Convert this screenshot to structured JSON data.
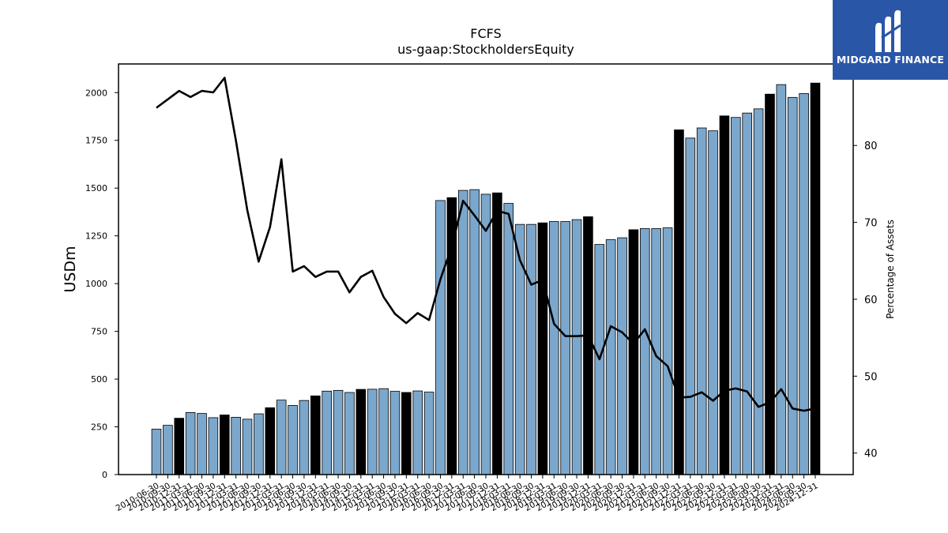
{
  "chart_data": {
    "type": "bar",
    "title": "FCFS",
    "subtitle": "us-gaap:StockholdersEquity",
    "ylabel": "USDm",
    "y2label": "Percentage of Assets",
    "ylim": [
      0,
      2150
    ],
    "y2lim": [
      37.2,
      90.6
    ],
    "yticks": [
      0,
      250,
      500,
      750,
      1000,
      1250,
      1500,
      1750,
      2000
    ],
    "y2ticks": [
      40,
      50,
      60,
      70,
      80
    ],
    "colors": {
      "bar": "#7ba7cc",
      "bar_highlight": "#000000",
      "line": "#000000"
    },
    "categories": [
      "2010-06-30",
      "2010-09-30",
      "2010-12-31",
      "2011-03-31",
      "2011-06-30",
      "2011-09-30",
      "2011-12-31",
      "2012-03-31",
      "2012-06-30",
      "2012-09-30",
      "2012-12-31",
      "2013-03-31",
      "2013-06-30",
      "2013-09-30",
      "2013-12-31",
      "2014-03-31",
      "2014-06-30",
      "2014-09-30",
      "2014-12-31",
      "2015-03-31",
      "2015-06-30",
      "2015-09-30",
      "2015-12-31",
      "2016-03-31",
      "2016-06-30",
      "2016-09-30",
      "2016-12-31",
      "2017-03-31",
      "2017-06-30",
      "2017-09-30",
      "2017-12-31",
      "2018-03-31",
      "2018-06-30",
      "2018-09-30",
      "2018-12-31",
      "2019-03-31",
      "2019-06-30",
      "2019-09-30",
      "2019-12-31",
      "2020-03-31",
      "2020-06-30",
      "2020-09-30",
      "2020-12-31",
      "2021-03-31",
      "2021-06-30",
      "2021-09-30",
      "2021-12-31",
      "2022-03-31",
      "2022-06-30",
      "2022-09-30",
      "2022-12-31",
      "2023-03-31",
      "2023-06-30",
      "2023-09-30",
      "2023-12-31",
      "2024-03-31",
      "2024-06-30",
      "2024-09-30",
      "2024-12-31"
    ],
    "tick_labels": [
      "2010-06-30",
      "2010-09-30",
      "2010-12-31",
      "2011-03-31",
      "2011-06-30",
      "2011-09-30",
      "2011-12-31",
      "2012-03-31",
      "2012-06-30",
      "2012-09-30",
      "2012-12-31",
      "2013-03-31",
      "2013-06-30",
      "2013-09-30",
      "2013-12-31",
      "2014-03-31",
      "2014-06-30",
      "2014-09-30",
      "2014-12-31",
      "2015-03-31",
      "2015-06-30",
      "2015-09-30",
      "2015-12-31",
      "2016-03-31",
      "2016-06-30",
      "2016-09-30",
      "2016-12-31",
      "2017-03-31",
      "2017-06-30",
      "2017-09-30",
      "2017-12-31",
      "2018-03-31",
      "2018-06-30",
      "2018-09-30",
      "2018-12-31",
      "2019-03-31",
      "2019-06-30",
      "2019-09-30",
      "2019-12-31",
      "2020-03-31",
      "2020-06-30",
      "2020-09-30",
      "2020-12-31",
      "2021-03-31",
      "2021-06-30",
      "2021-09-30",
      "2021-12-31",
      "2022-03-31",
      "2022-06-30",
      "2022-09-30",
      "2022-12-31",
      "2023-03-31",
      "2023-06-30",
      "2023-09-30",
      "2023-12-31",
      "2024-03-31",
      "2024-06-30",
      "2024-09-30",
      "2024-12-31"
    ],
    "series": [
      {
        "type": "bar",
        "values": [
          238,
          258,
          295,
          325,
          320,
          298,
          312,
          300,
          290,
          318,
          350,
          390,
          362,
          388,
          412,
          437,
          441,
          430,
          446,
          447,
          450,
          436,
          430,
          438,
          432,
          1435,
          1450,
          1488,
          1492,
          1468,
          1475,
          1420,
          1310,
          1310,
          1318,
          1325,
          1325,
          1335,
          1350,
          1205,
          1230,
          1240,
          1282,
          1288,
          1288,
          1292,
          1805,
          1762,
          1815,
          1800,
          1878,
          1870,
          1893,
          1915,
          1992,
          2042,
          1975,
          1995,
          2050
        ],
        "highlight": [
          false,
          false,
          true,
          false,
          false,
          false,
          true,
          false,
          false,
          false,
          true,
          false,
          false,
          false,
          true,
          false,
          false,
          false,
          true,
          false,
          false,
          false,
          true,
          false,
          false,
          false,
          true,
          false,
          false,
          false,
          true,
          false,
          false,
          false,
          true,
          false,
          false,
          false,
          true,
          false,
          false,
          false,
          true,
          false,
          false,
          false,
          true,
          false,
          false,
          false,
          true,
          false,
          false,
          false,
          true,
          false,
          false,
          false,
          true
        ]
      },
      {
        "type": "line",
        "axis": "right",
        "values": [
          84.9,
          86.0,
          87.1,
          86.3,
          87.1,
          86.9,
          88.8,
          80.6,
          71.6,
          64.9,
          69.4,
          78.2,
          63.6,
          64.3,
          62.9,
          63.6,
          63.6,
          60.9,
          62.9,
          63.7,
          60.3,
          58.1,
          56.9,
          58.2,
          57.3,
          62.6,
          66.9,
          72.8,
          70.9,
          68.9,
          71.5,
          71.1,
          65.1,
          61.9,
          62.5,
          56.8,
          55.2,
          55.2,
          55.3,
          52.2,
          56.5,
          55.7,
          54.2,
          56.1,
          52.6,
          51.3,
          47.2,
          47.3,
          47.9,
          46.8,
          48.1,
          48.4,
          48.0,
          46.0,
          46.6,
          48.3,
          45.8,
          45.5,
          45.8
        ]
      }
    ]
  },
  "branding": {
    "logo_text": "MIDGARD FINANCE",
    "logo_icon": "midgard-m-logo-icon"
  }
}
